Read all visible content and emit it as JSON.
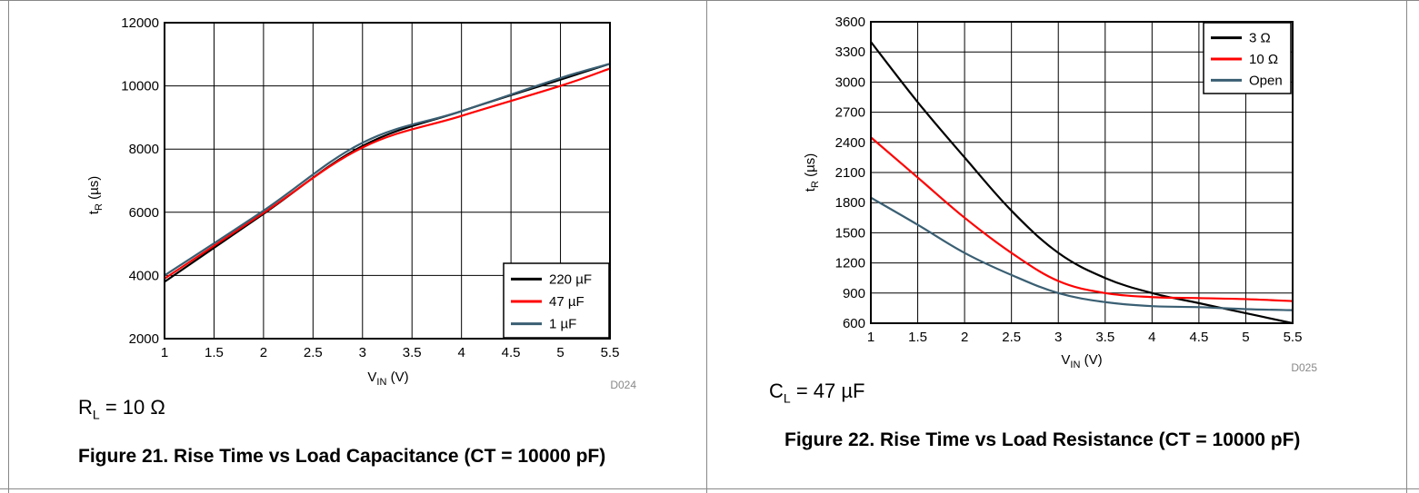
{
  "figures": [
    {
      "caption": "Figure 21. Rise Time vs Load Capacitance (CT = 10000 pF)",
      "condition": {
        "symbol": "R",
        "sub": "L",
        "value": "= 10 Ω"
      },
      "code": "D024",
      "ylabel": {
        "main": "t",
        "sub": "R",
        "unit": " (µs)"
      },
      "xlabel": {
        "main": "V",
        "sub": "IN",
        "unit": " (V)"
      }
    },
    {
      "caption": "Figure 22. Rise Time vs Load Resistance (CT = 10000 pF)",
      "condition": {
        "symbol": "C",
        "sub": "L",
        "value": "= 47 µF"
      },
      "code": "D025",
      "ylabel": {
        "main": "t",
        "sub": "R",
        "unit": " (µs)"
      },
      "xlabel": {
        "main": "V",
        "sub": "IN",
        "unit": " (V)"
      }
    }
  ],
  "chart_data": [
    {
      "type": "line",
      "title": "Rise Time vs Load Capacitance (CT = 10000 pF)",
      "xlabel": "VIN (V)",
      "ylabel": "tR (µs)",
      "xlim": [
        1,
        5.5
      ],
      "ylim": [
        2000,
        12000
      ],
      "xticks": [
        "1",
        "1.5",
        "2",
        "2.5",
        "3",
        "3.5",
        "4",
        "4.5",
        "5",
        "5.5"
      ],
      "yticks": [
        "2000",
        "4000",
        "6000",
        "8000",
        "10000",
        "12000"
      ],
      "grid": true,
      "legend_position": "bottom-right",
      "series": [
        {
          "name": "220 µF",
          "color": "#000000",
          "x": [
            1,
            2,
            3,
            4,
            5,
            5.5
          ],
          "y": [
            3800,
            5950,
            8100,
            9200,
            10200,
            10700
          ]
        },
        {
          "name": "47 µF",
          "color": "#ff0000",
          "x": [
            1,
            2,
            3,
            4,
            5,
            5.5
          ],
          "y": [
            3900,
            5980,
            8050,
            9050,
            10000,
            10550
          ]
        },
        {
          "name": "1 µF",
          "color": "#3a5f73",
          "x": [
            1,
            2,
            3,
            4,
            5,
            5.5
          ],
          "y": [
            4000,
            6050,
            8200,
            9200,
            10250,
            10700
          ]
        }
      ]
    },
    {
      "type": "line",
      "title": "Rise Time vs Load Resistance (CT = 10000 pF)",
      "xlabel": "VIN (V)",
      "ylabel": "tR (µs)",
      "xlim": [
        1,
        5.5
      ],
      "ylim": [
        600,
        3600
      ],
      "xticks": [
        "1",
        "1.5",
        "2",
        "2.5",
        "3",
        "3.5",
        "4",
        "4.5",
        "5",
        "5.5"
      ],
      "yticks": [
        "600",
        "900",
        "1200",
        "1500",
        "1800",
        "2100",
        "2400",
        "2700",
        "3000",
        "3300",
        "3600"
      ],
      "grid": true,
      "legend_position": "top-right",
      "series": [
        {
          "name": "3 Ω",
          "color": "#000000",
          "x": [
            1,
            1.5,
            2,
            2.5,
            3,
            3.5,
            4,
            4.5,
            5,
            5.5
          ],
          "y": [
            3400,
            2800,
            2250,
            1720,
            1300,
            1050,
            900,
            800,
            700,
            600
          ]
        },
        {
          "name": "10 Ω",
          "color": "#ff0000",
          "x": [
            1,
            1.5,
            2,
            2.5,
            3,
            3.5,
            4,
            4.5,
            5,
            5.5
          ],
          "y": [
            2450,
            2050,
            1650,
            1300,
            1020,
            900,
            860,
            850,
            840,
            820
          ]
        },
        {
          "name": "Open",
          "color": "#3a5f73",
          "x": [
            1,
            1.5,
            2,
            2.5,
            3,
            3.5,
            4,
            4.5,
            5,
            5.5
          ],
          "y": [
            1850,
            1580,
            1300,
            1080,
            900,
            810,
            770,
            760,
            740,
            730
          ]
        }
      ]
    }
  ]
}
